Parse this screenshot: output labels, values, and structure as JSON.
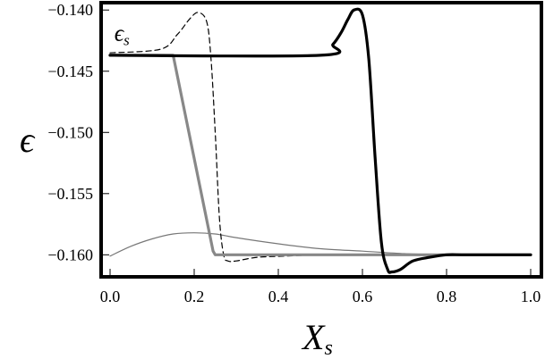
{
  "chart_data": {
    "type": "line",
    "title": "",
    "xlabel": "X",
    "xlabel_sub": "s",
    "ylabel": "ϵ",
    "xlim": [
      0.0,
      1.0
    ],
    "ylim": [
      -0.1618,
      -0.1394
    ],
    "grid": false,
    "frame": "thick-black-box",
    "x_ticks": [
      "0.0",
      "0.2",
      "0.4",
      "0.6",
      "0.8",
      "1.0"
    ],
    "y_ticks": [
      "−0.140",
      "−0.145",
      "−0.150",
      "−0.155",
      "−0.160"
    ],
    "annotations": [
      {
        "text": "ϵ",
        "sub": "s",
        "x": 0.01,
        "y": -0.1425
      }
    ],
    "series": [
      {
        "style": "thick-black",
        "color": "#000000",
        "x": [
          0.0,
          0.5,
          0.53,
          0.55,
          0.565,
          0.58,
          0.6,
          0.615,
          0.63,
          0.645,
          0.66,
          0.67,
          0.69,
          0.72,
          0.76,
          0.8,
          0.85,
          1.0
        ],
        "y": [
          -0.1437,
          -0.1437,
          -0.1428,
          -0.1418,
          -0.1408,
          -0.14,
          -0.1404,
          -0.144,
          -0.152,
          -0.159,
          -0.1612,
          -0.1614,
          -0.1612,
          -0.1605,
          -0.1602,
          -0.16,
          -0.16,
          -0.16
        ]
      },
      {
        "style": "thick-gray",
        "color": "#888888",
        "x": [
          0.0,
          0.15,
          0.245,
          0.25,
          1.0
        ],
        "y": [
          -0.1437,
          -0.1437,
          -0.1597,
          -0.16,
          -0.16
        ]
      },
      {
        "style": "thin-black-dashed",
        "color": "#000000",
        "x": [
          0.0,
          0.12,
          0.16,
          0.19,
          0.21,
          0.23,
          0.24,
          0.25,
          0.26,
          0.27,
          0.28,
          0.3,
          0.35,
          0.42,
          0.5,
          0.6,
          1.0
        ],
        "y": [
          -0.1435,
          -0.1432,
          -0.142,
          -0.1407,
          -0.1402,
          -0.141,
          -0.144,
          -0.15,
          -0.157,
          -0.16,
          -0.1605,
          -0.1605,
          -0.1602,
          -0.1601,
          -0.16,
          -0.16,
          -0.16
        ]
      },
      {
        "style": "thin-gray",
        "color": "#777777",
        "x": [
          0.0,
          0.05,
          0.1,
          0.15,
          0.2,
          0.25,
          0.3,
          0.4,
          0.5,
          0.6,
          0.7,
          0.8,
          1.0
        ],
        "y": [
          -0.1601,
          -0.1593,
          -0.1587,
          -0.1583,
          -0.1582,
          -0.1583,
          -0.1586,
          -0.1591,
          -0.1595,
          -0.1597,
          -0.1599,
          -0.16,
          -0.16
        ]
      }
    ]
  }
}
